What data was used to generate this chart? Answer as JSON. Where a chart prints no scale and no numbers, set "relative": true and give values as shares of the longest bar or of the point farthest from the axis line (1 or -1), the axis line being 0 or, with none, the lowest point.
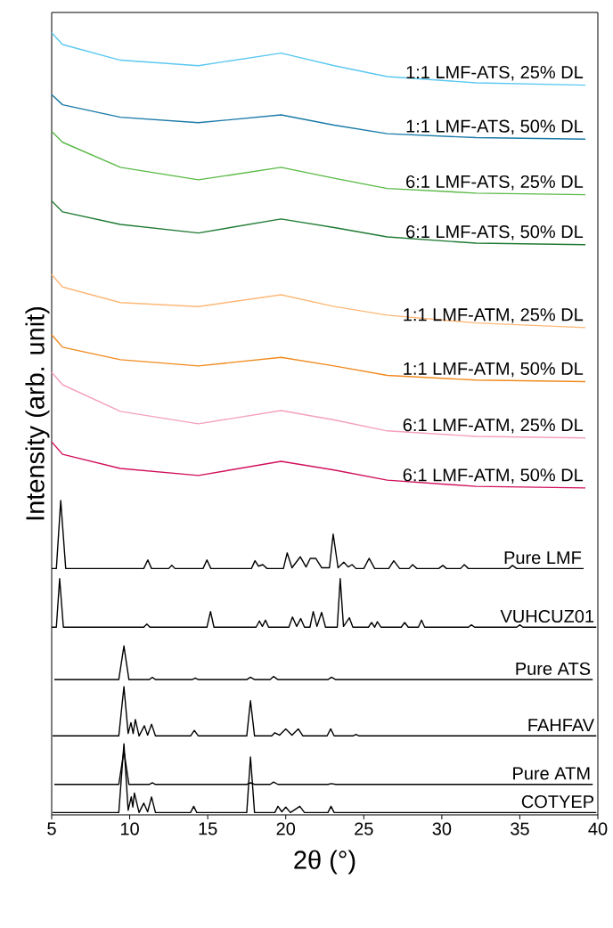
{
  "chart_data": {
    "type": "line",
    "relative": true,
    "xlabel": "2θ (°)",
    "ylabel": "Intensity (arb. unit)",
    "xlim": [
      5,
      40
    ],
    "xticks": [
      5,
      10,
      15,
      20,
      25,
      30,
      35,
      40
    ],
    "series": [
      {
        "name": "1:1 LMF-ATS, 25% DL",
        "color": "#5bc8f0",
        "x": [
          5,
          5.7,
          9.4,
          14.4,
          19.7,
          23.1,
          26.5,
          32.2,
          39.2
        ],
        "values": [
          1.0,
          0.985,
          0.965,
          0.958,
          0.974,
          0.958,
          0.944,
          0.936,
          0.933
        ]
      },
      {
        "name": "1:1 LMF-ATS, 50% DL",
        "color": "#1a7aa8",
        "x": [
          5,
          5.7,
          9.4,
          14.4,
          19.7,
          23.1,
          26.5,
          32.2,
          39.2
        ],
        "values": [
          0.921,
          0.908,
          0.892,
          0.885,
          0.895,
          0.882,
          0.871,
          0.866,
          0.864
        ]
      },
      {
        "name": "6:1 LMF-ATS, 25% DL",
        "color": "#5ab947",
        "x": [
          5,
          5.7,
          9.4,
          14.4,
          19.7,
          23.1,
          26.5,
          32.2,
          39.2
        ],
        "values": [
          0.874,
          0.86,
          0.828,
          0.812,
          0.828,
          0.814,
          0.801,
          0.795,
          0.793
        ]
      },
      {
        "name": "6:1 LMF-ATS, 50% DL",
        "color": "#1e7a32",
        "x": [
          5,
          5.7,
          9.4,
          14.4,
          19.7,
          23.1,
          26.5,
          32.2,
          39.2
        ],
        "values": [
          0.785,
          0.771,
          0.755,
          0.744,
          0.762,
          0.751,
          0.739,
          0.731,
          0.729
        ]
      },
      {
        "name": "1:1 LMF-ATM, 25% DL",
        "color": "#fdb878",
        "x": [
          5,
          5.7,
          9.4,
          14.4,
          19.7,
          23.1,
          26.5,
          32.2,
          39.2
        ],
        "values": [
          0.691,
          0.675,
          0.655,
          0.65,
          0.665,
          0.65,
          0.639,
          0.629,
          0.623
        ]
      },
      {
        "name": "1:1 LMF-ATM, 50% DL",
        "color": "#f08a1e",
        "x": [
          5,
          5.7,
          9.4,
          14.4,
          19.7,
          23.1,
          26.5,
          32.2,
          39.2
        ],
        "values": [
          0.614,
          0.598,
          0.582,
          0.574,
          0.585,
          0.574,
          0.562,
          0.556,
          0.554
        ]
      },
      {
        "name": "6:1 LMF-ATM, 25% DL",
        "color": "#f4a0c0",
        "x": [
          5,
          5.7,
          9.4,
          14.4,
          19.7,
          23.1,
          26.5,
          32.2,
          39.2
        ],
        "values": [
          0.566,
          0.55,
          0.516,
          0.5,
          0.517,
          0.505,
          0.491,
          0.484,
          0.482
        ]
      },
      {
        "name": "6:1 LMF-ATM, 50% DL",
        "color": "#d0105a",
        "x": [
          5,
          5.7,
          9.4,
          14.4,
          19.7,
          23.1,
          26.5,
          32.2,
          39.2
        ],
        "values": [
          0.477,
          0.461,
          0.443,
          0.434,
          0.452,
          0.441,
          0.428,
          0.42,
          0.418
        ]
      },
      {
        "name": "Pure LMF",
        "color": "#000000",
        "x": [
          5,
          5.3,
          5.58,
          5.9,
          10.9,
          11.16,
          11.4,
          12.5,
          12.7,
          12.9,
          14.7,
          14.95,
          15.2,
          17.8,
          18.03,
          18.25,
          18.53,
          18.8,
          19.85,
          20.09,
          20.4,
          20.93,
          21.3,
          21.57,
          21.92,
          22.3,
          22.8,
          23.04,
          23.35,
          23.72,
          24.0,
          24.25,
          24.5,
          25.0,
          25.34,
          25.7,
          26.6,
          26.92,
          27.3,
          27.9,
          28.13,
          28.4,
          29.8,
          30.07,
          30.3,
          31.2,
          31.44,
          31.7,
          34.3,
          34.53,
          34.8,
          39.09
        ],
        "values": [
          0.315,
          0.315,
          0.402,
          0.315,
          0.315,
          0.326,
          0.315,
          0.315,
          0.319,
          0.315,
          0.315,
          0.326,
          0.315,
          0.315,
          0.325,
          0.318,
          0.32,
          0.315,
          0.315,
          0.335,
          0.316,
          0.33,
          0.317,
          0.328,
          0.328,
          0.316,
          0.316,
          0.359,
          0.316,
          0.323,
          0.317,
          0.32,
          0.315,
          0.315,
          0.328,
          0.315,
          0.315,
          0.325,
          0.315,
          0.315,
          0.32,
          0.315,
          0.315,
          0.319,
          0.315,
          0.315,
          0.32,
          0.315,
          0.315,
          0.319,
          0.315,
          0.315
        ]
      },
      {
        "name": "VUHCUZ01",
        "color": "#000000",
        "x": [
          5,
          5.3,
          5.51,
          5.75,
          10.9,
          11.1,
          11.3,
          14.95,
          15.18,
          15.4,
          18.1,
          18.31,
          18.5,
          18.7,
          18.9,
          20.2,
          20.43,
          20.7,
          20.96,
          21.2,
          21.55,
          21.76,
          22.0,
          22.3,
          22.55,
          23.3,
          23.49,
          23.7,
          24.08,
          24.3,
          25.3,
          25.5,
          25.7,
          25.87,
          26.1,
          27.4,
          27.62,
          27.85,
          28.5,
          28.7,
          28.9,
          31.7,
          31.9,
          32.1,
          34.8,
          35.0,
          35.2,
          39.9
        ],
        "values": [
          0.24,
          0.24,
          0.302,
          0.24,
          0.24,
          0.244,
          0.24,
          0.24,
          0.26,
          0.24,
          0.24,
          0.248,
          0.241,
          0.249,
          0.24,
          0.24,
          0.253,
          0.241,
          0.251,
          0.24,
          0.24,
          0.26,
          0.241,
          0.259,
          0.24,
          0.24,
          0.302,
          0.241,
          0.252,
          0.24,
          0.24,
          0.246,
          0.24,
          0.247,
          0.24,
          0.24,
          0.246,
          0.24,
          0.24,
          0.249,
          0.24,
          0.24,
          0.243,
          0.24,
          0.24,
          0.243,
          0.24,
          0.24
        ]
      },
      {
        "name": "Pure ATS",
        "color": "#000000",
        "x": [
          5.17,
          9.3,
          9.63,
          9.95,
          11.25,
          11.45,
          11.65,
          14.0,
          14.2,
          14.4,
          17.5,
          17.74,
          18.0,
          19.0,
          19.22,
          19.5,
          22.7,
          22.93,
          23.2,
          39.67
        ],
        "values": [
          0.173,
          0.173,
          0.216,
          0.173,
          0.173,
          0.176,
          0.173,
          0.173,
          0.175,
          0.173,
          0.173,
          0.176,
          0.173,
          0.173,
          0.177,
          0.173,
          0.173,
          0.176,
          0.173,
          0.173
        ]
      },
      {
        "name": "FAHFAV",
        "color": "#000000",
        "x": [
          5.06,
          9.3,
          9.63,
          9.9,
          10.08,
          10.22,
          10.36,
          10.6,
          10.94,
          11.15,
          11.4,
          11.65,
          13.9,
          14.14,
          14.4,
          17.5,
          17.74,
          18.0,
          19.1,
          19.3,
          19.6,
          20.0,
          20.4,
          20.8,
          21.1,
          22.65,
          22.88,
          23.1,
          24.3,
          24.5,
          24.7,
          39.9
        ],
        "values": [
          0.101,
          0.101,
          0.164,
          0.104,
          0.118,
          0.104,
          0.122,
          0.101,
          0.114,
          0.102,
          0.116,
          0.101,
          0.101,
          0.108,
          0.101,
          0.101,
          0.146,
          0.101,
          0.101,
          0.105,
          0.102,
          0.11,
          0.102,
          0.11,
          0.101,
          0.101,
          0.11,
          0.101,
          0.101,
          0.103,
          0.101,
          0.101
        ]
      },
      {
        "name": "Pure ATM",
        "color": "#000000",
        "x": [
          5.17,
          9.3,
          9.63,
          9.95,
          11.25,
          11.45,
          11.65,
          17.5,
          17.74,
          18.0,
          19.0,
          19.22,
          19.5,
          22.7,
          22.93,
          23.2,
          39.67
        ],
        "values": [
          0.039,
          0.039,
          0.082,
          0.039,
          0.039,
          0.041,
          0.039,
          0.039,
          0.041,
          0.039,
          0.039,
          0.042,
          0.039,
          0.039,
          0.04,
          0.039,
          0.039
        ]
      },
      {
        "name": "COTYEP",
        "color": "#000000",
        "x": [
          5.06,
          9.3,
          9.63,
          9.9,
          10.1,
          10.2,
          10.3,
          10.6,
          10.9,
          11.15,
          11.4,
          11.65,
          13.9,
          14.1,
          14.3,
          17.5,
          17.74,
          18.0,
          19.3,
          19.5,
          19.75,
          20.0,
          20.3,
          20.9,
          21.2,
          22.7,
          22.9,
          23.1,
          39.9
        ],
        "values": [
          0.003,
          0.003,
          0.091,
          0.006,
          0.023,
          0.01,
          0.028,
          0.003,
          0.015,
          0.004,
          0.023,
          0.003,
          0.003,
          0.011,
          0.003,
          0.003,
          0.074,
          0.003,
          0.003,
          0.011,
          0.004,
          0.01,
          0.003,
          0.011,
          0.003,
          0.003,
          0.011,
          0.003,
          0.003
        ]
      }
    ]
  }
}
